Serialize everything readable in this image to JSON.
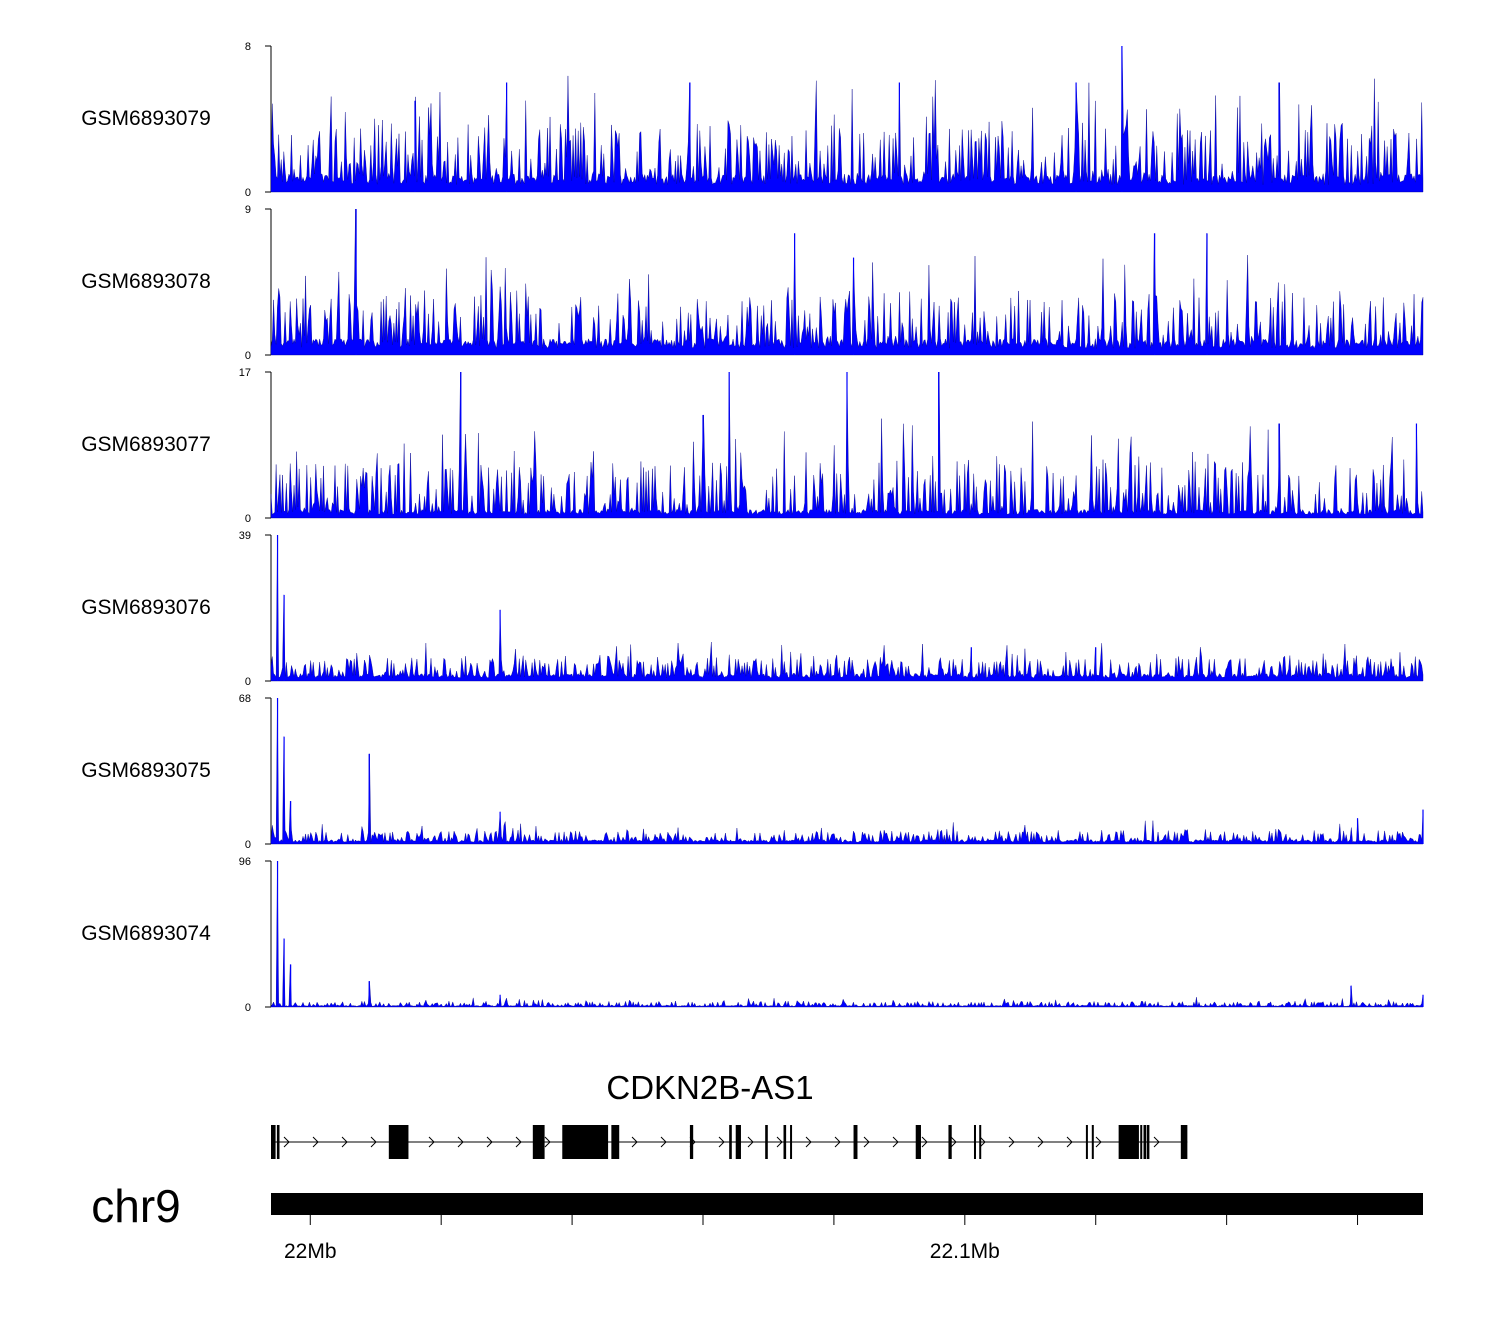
{
  "chart_data": {
    "type": "area",
    "title": "",
    "xlabel": "",
    "ylabel": "",
    "chromosome": "chr9",
    "xlim": [
      21994000,
      22170000
    ],
    "x_ticks": [
      22000000,
      22020000,
      22040000,
      22060000,
      22080000,
      22100000,
      22120000,
      22140000,
      22160000
    ],
    "x_tick_labels": [
      {
        "x": 22000000,
        "label": "22Mb"
      },
      {
        "x": 22100000,
        "label": "22.1Mb"
      }
    ],
    "colors": {
      "signal": "#0000FF",
      "gene": "#000000",
      "axis": "#000000"
    },
    "tracks": [
      {
        "name": "GSM6893079",
        "ymax": 8,
        "ymax_label": "8",
        "ymin_label": "0",
        "baseline": 1,
        "noise": 3,
        "peaks": [
          {
            "x": 22124000,
            "value": 8
          },
          {
            "x": 22016000,
            "value": 5
          },
          {
            "x": 22030000,
            "value": 6
          },
          {
            "x": 22058000,
            "value": 6
          },
          {
            "x": 22090000,
            "value": 6
          },
          {
            "x": 22117000,
            "value": 6
          },
          {
            "x": 22148000,
            "value": 6
          }
        ]
      },
      {
        "name": "GSM6893078",
        "ymax": 9,
        "ymax_label": "9",
        "ymin_label": "0",
        "baseline": 1,
        "noise": 3,
        "peaks": [
          {
            "x": 22007000,
            "value": 9
          },
          {
            "x": 22074000,
            "value": 7.5
          },
          {
            "x": 22129000,
            "value": 7.5
          },
          {
            "x": 22137000,
            "value": 7.5
          },
          {
            "x": 22083000,
            "value": 6
          }
        ]
      },
      {
        "name": "GSM6893077",
        "ymax": 17,
        "ymax_label": "17",
        "ymin_label": "0",
        "baseline": 1,
        "noise": 6,
        "peaks": [
          {
            "x": 22023000,
            "value": 17
          },
          {
            "x": 22064000,
            "value": 17
          },
          {
            "x": 22082000,
            "value": 17
          },
          {
            "x": 22096000,
            "value": 17
          },
          {
            "x": 22060000,
            "value": 12
          },
          {
            "x": 22148000,
            "value": 11
          },
          {
            "x": 22169000,
            "value": 11
          }
        ]
      },
      {
        "name": "GSM6893076",
        "ymax": 39,
        "ymax_label": "39",
        "ymin_label": "0",
        "baseline": 2,
        "noise": 5,
        "peaks": [
          {
            "x": 21995000,
            "value": 39
          },
          {
            "x": 21996000,
            "value": 23
          },
          {
            "x": 22029000,
            "value": 19
          },
          {
            "x": 22120000,
            "value": 9
          },
          {
            "x": 22101000,
            "value": 9
          }
        ]
      },
      {
        "name": "GSM6893075",
        "ymax": 68,
        "ymax_label": "68",
        "ymin_label": "0",
        "baseline": 2,
        "noise": 5,
        "peaks": [
          {
            "x": 21995000,
            "value": 68
          },
          {
            "x": 21996000,
            "value": 50
          },
          {
            "x": 21997000,
            "value": 20
          },
          {
            "x": 22009000,
            "value": 42
          },
          {
            "x": 22029000,
            "value": 15
          },
          {
            "x": 22160000,
            "value": 12
          },
          {
            "x": 22170000,
            "value": 16
          }
        ]
      },
      {
        "name": "GSM6893074",
        "ymax": 96,
        "ymax_label": "96",
        "ymin_label": "0",
        "baseline": 1,
        "noise": 3,
        "peaks": [
          {
            "x": 21995000,
            "value": 96
          },
          {
            "x": 21996000,
            "value": 45
          },
          {
            "x": 21997000,
            "value": 28
          },
          {
            "x": 22009000,
            "value": 17
          },
          {
            "x": 22029000,
            "value": 8
          },
          {
            "x": 22159000,
            "value": 14
          },
          {
            "x": 22170000,
            "value": 8
          }
        ]
      }
    ],
    "gene": {
      "name": "CDKN2B-AS1",
      "strand": "+",
      "start": 21994000,
      "end": 22128000,
      "exons": [
        [
          21994000,
          21994700
        ],
        [
          21994900,
          21995300
        ],
        [
          22012000,
          22015000
        ],
        [
          22034000,
          22035800
        ],
        [
          22038500,
          22045500
        ],
        [
          22046000,
          22047200
        ],
        [
          22058000,
          22058500
        ],
        [
          22064000,
          22064400
        ],
        [
          22065000,
          22065800
        ],
        [
          22069500,
          22069900
        ],
        [
          22072300,
          22072700
        ],
        [
          22073300,
          22073600
        ],
        [
          22083000,
          22083600
        ],
        [
          22092500,
          22093300
        ],
        [
          22097500,
          22098000
        ],
        [
          22101400,
          22101700
        ],
        [
          22102200,
          22102500
        ],
        [
          22118500,
          22118800
        ],
        [
          22119400,
          22119700
        ],
        [
          22123500,
          22126600
        ],
        [
          22126800,
          22127100
        ],
        [
          22127300,
          22127700
        ],
        [
          22127800,
          22128200
        ],
        [
          22133000,
          22134000
        ]
      ]
    }
  }
}
